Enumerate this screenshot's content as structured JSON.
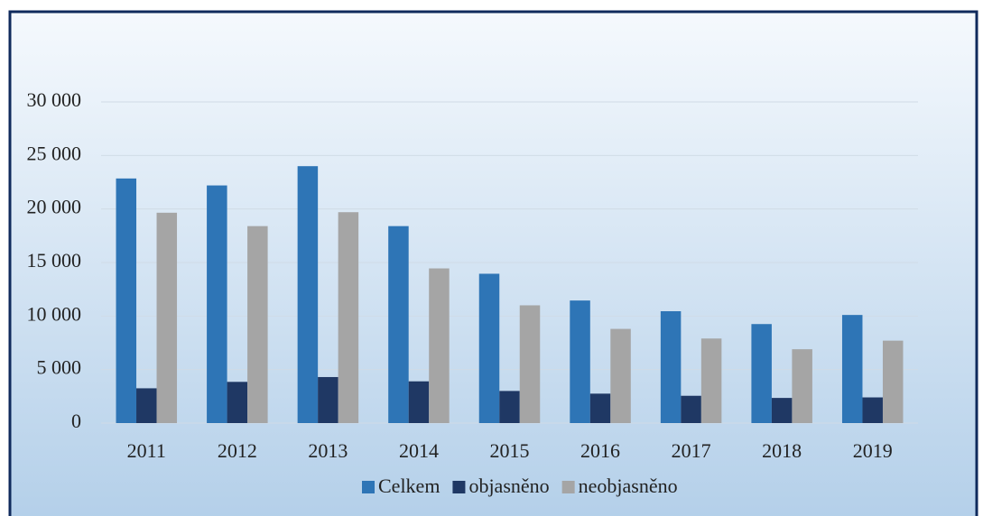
{
  "chart_data": {
    "type": "bar",
    "categories": [
      "2011",
      "2012",
      "2013",
      "2014",
      "2015",
      "2016",
      "2017",
      "2018",
      "2019"
    ],
    "series": [
      {
        "name": "Celkem",
        "color": "#2e75b6",
        "values": [
          22850,
          22200,
          24000,
          18400,
          13950,
          11450,
          10450,
          9250,
          10100
        ]
      },
      {
        "name": "objasněno",
        "color": "#1f3864",
        "values": [
          3250,
          3850,
          4300,
          3900,
          3000,
          2750,
          2550,
          2350,
          2400
        ]
      },
      {
        "name": "neobjasněno",
        "color": "#a5a5a5",
        "values": [
          19650,
          18400,
          19700,
          14450,
          11000,
          8800,
          7900,
          6900,
          7700
        ]
      }
    ],
    "ylim": [
      0,
      30000
    ],
    "yticks": [
      0,
      {
        "value": 5000,
        "label": "5 000"
      },
      {
        "value": 10000,
        "label": "10 000"
      },
      {
        "value": 15000,
        "label": "15 000"
      },
      {
        "value": 20000,
        "label": "20 000"
      },
      {
        "value": 25000,
        "label": "25 000"
      },
      {
        "value": 30000,
        "label": "30 000"
      }
    ],
    "grid": true,
    "legend": "bottom"
  }
}
